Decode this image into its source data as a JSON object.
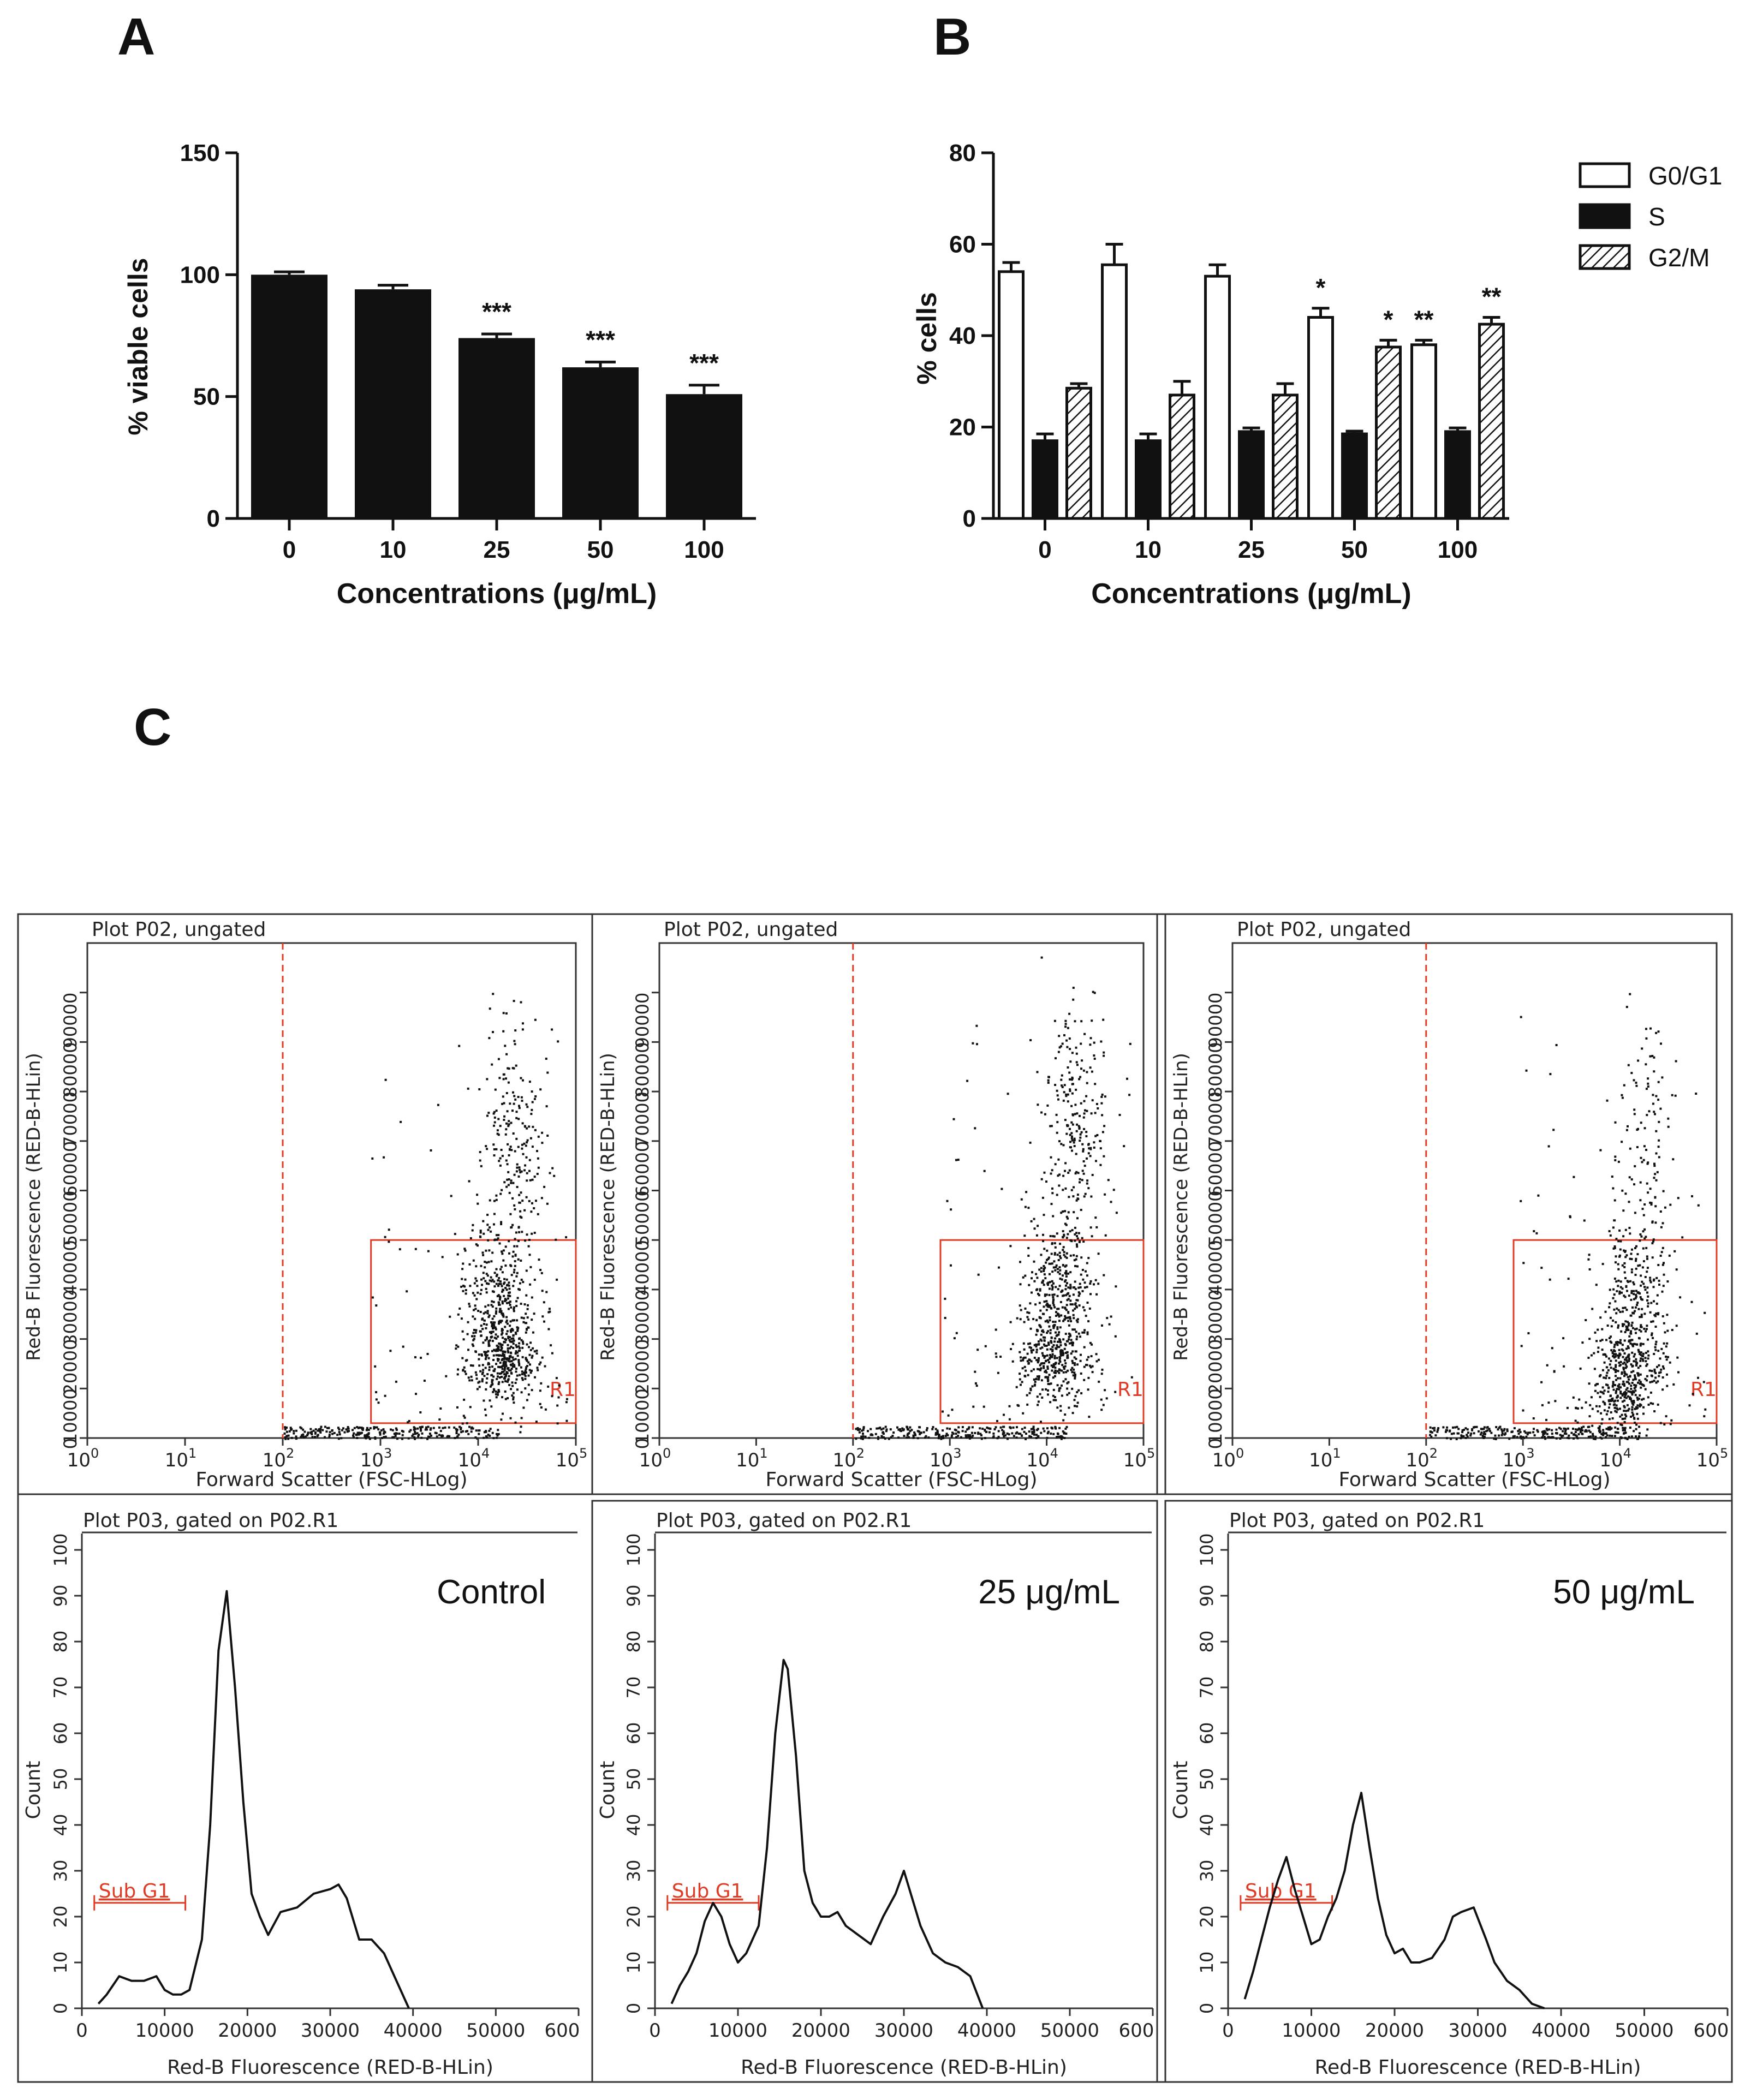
{
  "panel_labels": {
    "A": "A",
    "B": "B",
    "C": "C"
  },
  "chart_data": [
    {
      "id": "A",
      "type": "bar",
      "categories": [
        "0",
        "10",
        "25",
        "50",
        "100"
      ],
      "values": [
        100,
        94,
        74,
        62,
        51
      ],
      "errors": [
        0.5,
        1,
        1,
        1.5,
        3
      ],
      "significance": [
        "",
        "",
        "***",
        "***",
        "***"
      ],
      "xlabel": "Concentrations (μg/mL)",
      "ylabel": "% viable cells",
      "ylim": [
        0,
        150
      ],
      "yticks": [
        "0",
        "50",
        "100",
        "150"
      ],
      "grid": false
    },
    {
      "id": "B",
      "type": "bar",
      "categories": [
        "0",
        "10",
        "25",
        "50",
        "100"
      ],
      "series": [
        {
          "name": "G0/G1",
          "style": "open",
          "values": [
            54,
            55.5,
            53,
            44,
            38
          ],
          "errors": [
            2,
            4.5,
            2.5,
            2,
            1
          ],
          "significance": [
            "",
            "",
            "",
            "*",
            "**"
          ]
        },
        {
          "name": "S",
          "style": "solid",
          "values": [
            17,
            17,
            19,
            18.5,
            19
          ],
          "errors": [
            1.5,
            1.5,
            0.8,
            0.6,
            0.8
          ],
          "significance": [
            "",
            "",
            "",
            "",
            ""
          ]
        },
        {
          "name": "G2/M",
          "style": "hatched",
          "values": [
            28.5,
            27,
            27,
            37.5,
            42.5
          ],
          "errors": [
            1,
            3,
            2.5,
            1.5,
            1.5
          ],
          "significance": [
            "",
            "",
            "",
            "*",
            "**"
          ]
        }
      ],
      "xlabel": "Concentrations (μg/mL)",
      "ylabel": "% cells",
      "ylim": [
        0,
        80
      ],
      "yticks": [
        "0",
        "20",
        "40",
        "60",
        "80"
      ],
      "legend": "top-right",
      "grid": false
    },
    {
      "id": "C-scatter",
      "type": "scatter",
      "note": "three flow-cytometry dot plots (Control, 25 μg/mL, 50 μg/mL)",
      "title": "Plot P02, ungated",
      "xlabel": "Forward Scatter (FSC-HLog)",
      "ylabel": "Red-B Fluorescence (RED-B-HLin)",
      "xscale": "log",
      "xlim": [
        1,
        100000
      ],
      "ylim": [
        0,
        100000
      ],
      "xticks": [
        "0",
        "1",
        "2",
        "3",
        "4",
        "5"
      ],
      "yticks": [
        "0",
        "10000",
        "20000",
        "30000",
        "40000",
        "50000",
        "60000",
        "70000",
        "80000",
        "90000"
      ],
      "gate_line_x": 100,
      "gate": {
        "label": "R1",
        "x": [
          800,
          100000
        ],
        "y": [
          3000,
          40000
        ]
      },
      "populations": [
        {
          "clusters": [
            {
              "x": 4.25,
              "y": 16000,
              "n": 380
            },
            {
              "x": 4.2,
              "y": 30000,
              "n": 300
            },
            {
              "x": 4.35,
              "y": 60000,
              "n": 220
            }
          ]
        },
        {
          "clusters": [
            {
              "x": 4.05,
              "y": 16000,
              "n": 320
            },
            {
              "x": 4.15,
              "y": 30000,
              "n": 320
            },
            {
              "x": 4.3,
              "y": 62000,
              "n": 260
            }
          ]
        },
        {
          "clusters": [
            {
              "x": 4.0,
              "y": 8000,
              "n": 200
            },
            {
              "x": 4.1,
              "y": 17000,
              "n": 260
            },
            {
              "x": 4.15,
              "y": 30000,
              "n": 200
            },
            {
              "x": 4.25,
              "y": 60000,
              "n": 120
            }
          ]
        }
      ]
    },
    {
      "id": "C-histogram",
      "type": "line",
      "title": "Plot P03, gated on P02.R1",
      "xlabel": "Red-B Fluorescence (RED-B-HLin)",
      "ylabel": "Count",
      "xlim": [
        0,
        60000
      ],
      "ylim": [
        0,
        100
      ],
      "xticks": [
        "0",
        "10000",
        "20000",
        "30000",
        "40000",
        "50000",
        "600"
      ],
      "yticks": [
        "0",
        "10",
        "20",
        "30",
        "40",
        "50",
        "60",
        "70",
        "80",
        "90",
        "100"
      ],
      "subg1": {
        "label": "Sub G1",
        "x": [
          1500,
          12500
        ]
      },
      "series": [
        {
          "name": "Control",
          "x": [
            2000,
            3000,
            4500,
            6000,
            7500,
            9000,
            10000,
            11000,
            12000,
            13000,
            14500,
            15500,
            16500,
            17500,
            18500,
            19500,
            20500,
            21500,
            22500,
            24000,
            26000,
            28000,
            30000,
            31000,
            32000,
            33500,
            35000,
            36500,
            38000,
            39500
          ],
          "y": [
            1,
            3,
            7,
            6,
            6,
            7,
            4,
            3,
            3,
            4,
            15,
            40,
            78,
            91,
            70,
            45,
            25,
            20,
            16,
            21,
            22,
            25,
            26,
            27,
            24,
            15,
            15,
            12,
            6,
            0
          ]
        },
        {
          "name": "25 μg/mL",
          "x": [
            2000,
            3000,
            4000,
            5000,
            6000,
            7000,
            8000,
            9000,
            10000,
            11000,
            12500,
            13500,
            14500,
            15500,
            16000,
            17000,
            18000,
            19000,
            20000,
            21000,
            22000,
            23000,
            24500,
            26000,
            27500,
            29000,
            30000,
            31000,
            32000,
            33500,
            35000,
            36500,
            38000,
            39500
          ],
          "y": [
            1,
            5,
            8,
            12,
            19,
            23,
            20,
            14,
            10,
            12,
            18,
            35,
            60,
            76,
            74,
            55,
            30,
            23,
            20,
            20,
            21,
            18,
            16,
            14,
            20,
            25,
            30,
            24,
            18,
            12,
            10,
            9,
            7,
            0
          ]
        },
        {
          "name": "50 μg/mL",
          "x": [
            2000,
            3000,
            4000,
            5000,
            6000,
            7000,
            8000,
            9000,
            10000,
            11000,
            12000,
            13000,
            14000,
            15000,
            16000,
            17000,
            18000,
            19000,
            20000,
            21000,
            22000,
            23000,
            24500,
            26000,
            27000,
            28000,
            29500,
            31000,
            32000,
            33500,
            35000,
            36500,
            38000
          ],
          "y": [
            2,
            8,
            15,
            22,
            28,
            33,
            26,
            20,
            14,
            15,
            20,
            24,
            30,
            40,
            47,
            35,
            24,
            16,
            12,
            13,
            10,
            10,
            11,
            15,
            20,
            21,
            22,
            15,
            10,
            6,
            4,
            1,
            0
          ]
        }
      ]
    }
  ],
  "flow_panels": [
    {
      "condition": "Control"
    },
    {
      "condition": "25 μg/mL"
    },
    {
      "condition": "50 μg/mL"
    }
  ],
  "colors": {
    "gate": "#e03b24",
    "ink": "#111111"
  }
}
